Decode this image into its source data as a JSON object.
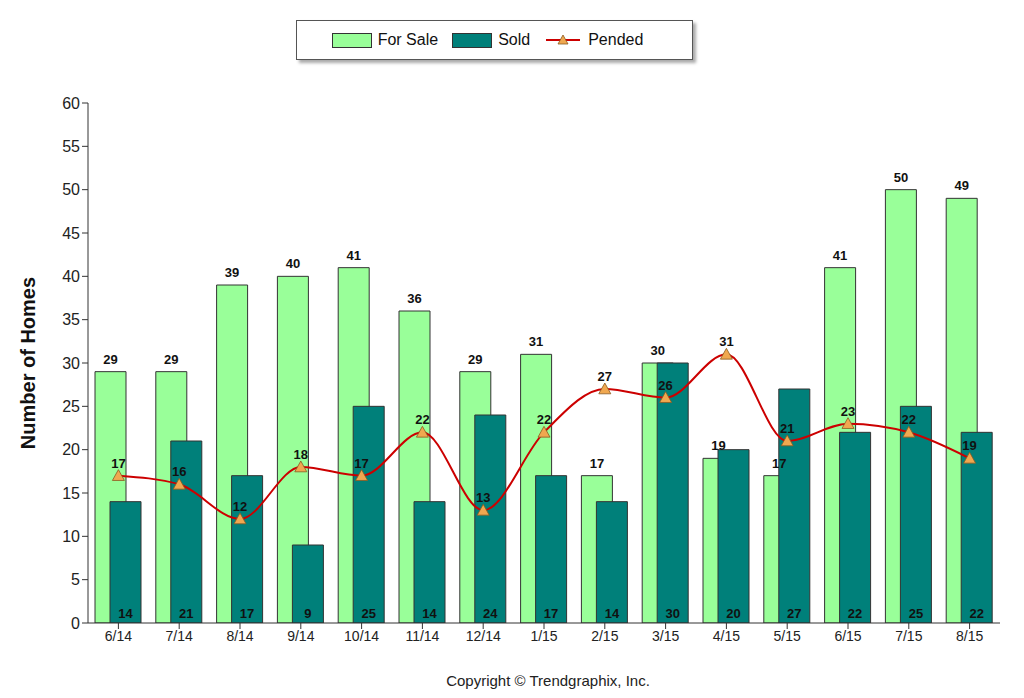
{
  "chart_data": {
    "type": "bar",
    "ylabel": "Number of Homes",
    "annotations": [
      "Copyright © Trendgraphix, Inc."
    ],
    "categories": [
      "6/14",
      "7/14",
      "8/14",
      "9/14",
      "10/14",
      "11/14",
      "12/14",
      "1/15",
      "2/15",
      "3/15",
      "4/15",
      "5/15",
      "6/15",
      "7/15",
      "8/15"
    ],
    "series": [
      {
        "name": "For Sale",
        "type": "bar",
        "color": "#99ff99",
        "values": [
          29,
          29,
          39,
          40,
          41,
          36,
          29,
          31,
          17,
          30,
          19,
          17,
          41,
          50,
          49
        ]
      },
      {
        "name": "Sold",
        "type": "bar",
        "color": "#00807a",
        "values": [
          14,
          21,
          17,
          9,
          25,
          14,
          24,
          17,
          14,
          30,
          20,
          27,
          22,
          25,
          22
        ]
      },
      {
        "name": "Pended",
        "type": "line",
        "color": "#cc0000",
        "marker": "triangle",
        "line_style": "solid",
        "values": [
          17,
          16,
          12,
          18,
          17,
          22,
          13,
          22,
          27,
          26,
          31,
          21,
          23,
          22,
          19
        ]
      }
    ],
    "ylim": [
      0,
      60
    ],
    "yticks": [
      0,
      5,
      10,
      15,
      20,
      25,
      30,
      35,
      40,
      45,
      50,
      55,
      60
    ],
    "grid": false,
    "legend": "top",
    "data_labels": true
  }
}
